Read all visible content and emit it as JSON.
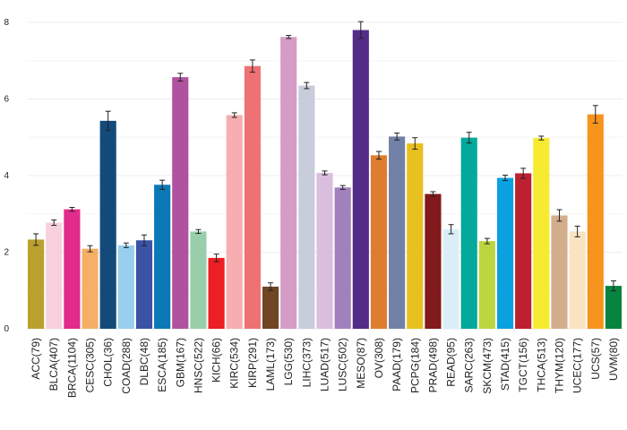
{
  "chart_data": {
    "type": "bar",
    "title": "",
    "xlabel": "",
    "ylabel": "",
    "ylim": [
      0,
      8.2
    ],
    "yticks": [
      0,
      2,
      4,
      6,
      8
    ],
    "grid": true,
    "error_bars": true,
    "categories": [
      "ACC(79)",
      "BLCA(407)",
      "BRCA(1104)",
      "CESC(305)",
      "CHOL(36)",
      "COAD(288)",
      "DLBC(48)",
      "ESCA(185)",
      "GBM(167)",
      "HNSC(522)",
      "KICH(66)",
      "KIRC(534)",
      "KIRP(291)",
      "LAML(173)",
      "LGG(530)",
      "LIHC(373)",
      "LUAD(517)",
      "LUSC(502)",
      "MESO(87)",
      "OV(308)",
      "PAAD(179)",
      "PCPG(184)",
      "PRAD(498)",
      "READ(95)",
      "SARC(263)",
      "SKCM(473)",
      "STAD(415)",
      "TGCT(156)",
      "THCA(513)",
      "THYM(120)",
      "UCEC(177)",
      "UCS(57)",
      "UVM(80)"
    ],
    "values": [
      2.33,
      2.77,
      3.12,
      2.09,
      5.43,
      2.18,
      2.31,
      3.76,
      6.57,
      2.54,
      1.85,
      5.58,
      6.86,
      1.1,
      7.62,
      6.35,
      4.07,
      3.69,
      7.8,
      4.53,
      5.02,
      4.84,
      3.52,
      2.6,
      4.99,
      2.29,
      3.94,
      4.06,
      4.98,
      2.96,
      2.54,
      5.6,
      1.12
    ],
    "errors": [
      0.15,
      0.07,
      0.05,
      0.08,
      0.25,
      0.06,
      0.14,
      0.12,
      0.1,
      0.05,
      0.1,
      0.06,
      0.16,
      0.1,
      0.04,
      0.08,
      0.05,
      0.05,
      0.22,
      0.1,
      0.09,
      0.15,
      0.06,
      0.12,
      0.14,
      0.07,
      0.07,
      0.13,
      0.05,
      0.15,
      0.14,
      0.23,
      0.13
    ],
    "colors": [
      "#BBA030",
      "#F8D0DC",
      "#E22B8A",
      "#F5AF66",
      "#134A7A",
      "#98CFEF",
      "#3A53A4",
      "#0B79B5",
      "#B0529F",
      "#98CFAA",
      "#ED1E24",
      "#F6AEB0",
      "#EE7173",
      "#6F4524",
      "#D59CC8",
      "#C9CCDA",
      "#D9BEDD",
      "#A081BD",
      "#542C88",
      "#DF7D2E",
      "#7282A6",
      "#E8C01F",
      "#82191C",
      "#DAEEF8",
      "#03A99B",
      "#BCD642",
      "#0AA1E0",
      "#BD2030",
      "#F6EB30",
      "#D3AE8D",
      "#FAE3C1",
      "#F7941D",
      "#07843F"
    ]
  }
}
